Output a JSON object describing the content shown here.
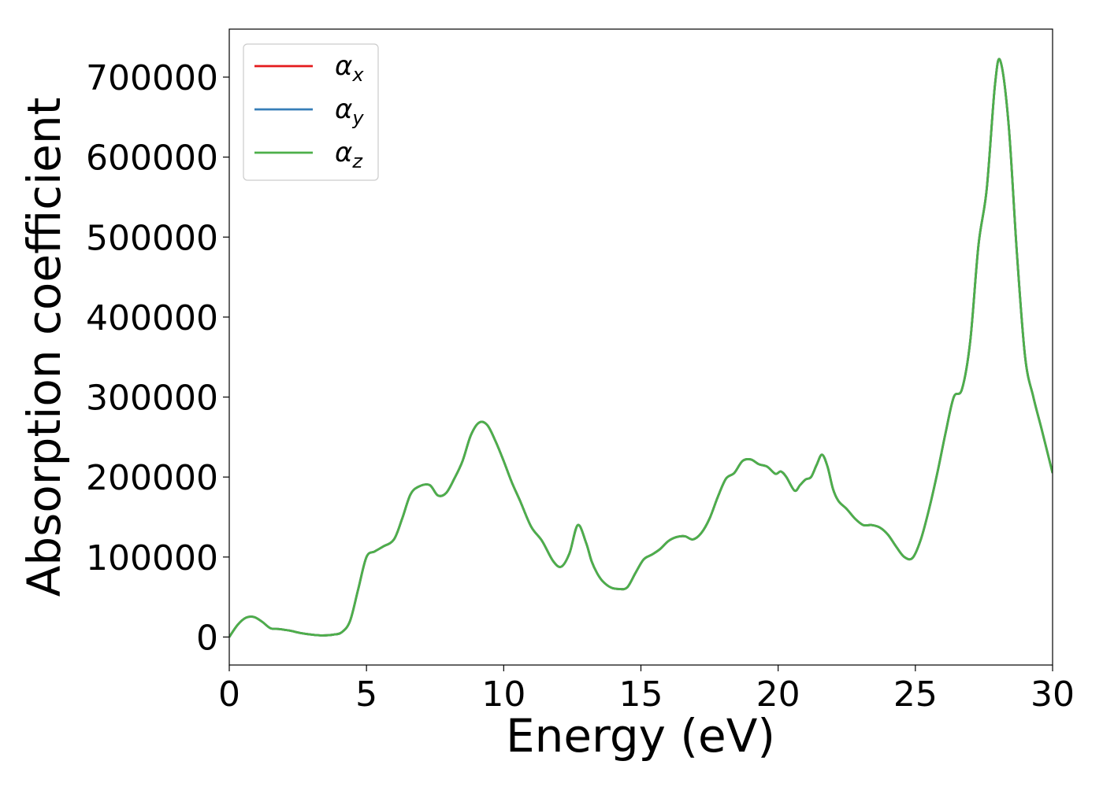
{
  "chart_data": {
    "type": "line",
    "xlabel": "Energy (eV)",
    "ylabel": "Absorption coefficient",
    "xlim": [
      0,
      30
    ],
    "ylim": [
      -35000,
      760000
    ],
    "xticks": [
      0,
      5,
      10,
      15,
      20,
      25,
      30
    ],
    "yticks": [
      0,
      100000,
      200000,
      300000,
      400000,
      500000,
      600000,
      700000
    ],
    "grid": false,
    "legend_position": "top-left",
    "x": [
      0,
      0.3,
      0.6,
      0.9,
      1.2,
      1.5,
      1.8,
      2.2,
      2.6,
      3.0,
      3.4,
      3.8,
      4.1,
      4.4,
      4.7,
      5.0,
      5.3,
      5.6,
      6.0,
      6.3,
      6.6,
      6.9,
      7.3,
      7.6,
      7.9,
      8.2,
      8.5,
      8.8,
      9.1,
      9.4,
      9.7,
      10.0,
      10.3,
      10.6,
      11.0,
      11.4,
      11.8,
      12.1,
      12.4,
      12.7,
      13.0,
      13.2,
      13.4,
      13.6,
      13.9,
      14.2,
      14.5,
      14.8,
      15.1,
      15.4,
      15.7,
      16.0,
      16.3,
      16.6,
      16.9,
      17.2,
      17.5,
      17.8,
      18.1,
      18.4,
      18.7,
      19.0,
      19.3,
      19.6,
      19.9,
      20.1,
      20.3,
      20.6,
      20.8,
      21.0,
      21.2,
      21.4,
      21.6,
      21.8,
      22.0,
      22.2,
      22.5,
      22.8,
      23.1,
      23.4,
      23.7,
      24.0,
      24.3,
      24.6,
      24.9,
      25.2,
      25.5,
      25.8,
      26.1,
      26.4,
      26.7,
      27.0,
      27.3,
      27.6,
      27.9,
      28.1,
      28.4,
      28.7,
      29.0,
      29.3,
      29.6,
      30.0
    ],
    "series": [
      {
        "name": "α_x",
        "color": "#e41a1c",
        "values": [
          0,
          15000,
          24000,
          25000,
          19000,
          11000,
          10000,
          8000,
          5000,
          3000,
          2000,
          3000,
          6000,
          20000,
          60000,
          100000,
          107000,
          113000,
          122000,
          148000,
          178000,
          188000,
          190000,
          177000,
          180000,
          198000,
          220000,
          252000,
          268000,
          265000,
          245000,
          220000,
          193000,
          170000,
          138000,
          120000,
          95000,
          88000,
          105000,
          140000,
          118000,
          95000,
          80000,
          70000,
          62000,
          60000,
          62000,
          80000,
          97000,
          103000,
          110000,
          120000,
          125000,
          126000,
          122000,
          130000,
          148000,
          175000,
          198000,
          205000,
          220000,
          222000,
          216000,
          213000,
          204000,
          207000,
          200000,
          183000,
          190000,
          197000,
          200000,
          215000,
          228000,
          213000,
          185000,
          170000,
          160000,
          148000,
          140000,
          140000,
          137000,
          128000,
          113000,
          100000,
          99000,
          122000,
          160000,
          205000,
          255000,
          300000,
          310000,
          370000,
          490000,
          560000,
          690000,
          720000,
          640000,
          480000,
          350000,
          300000,
          260000,
          205000
        ]
      },
      {
        "name": "α_y",
        "color": "#377eb8",
        "values": [
          0,
          15000,
          24000,
          25000,
          19000,
          11000,
          10000,
          8000,
          5000,
          3000,
          2000,
          3000,
          6000,
          20000,
          60000,
          100000,
          107000,
          113000,
          122000,
          148000,
          178000,
          188000,
          190000,
          177000,
          180000,
          198000,
          220000,
          252000,
          268000,
          265000,
          245000,
          220000,
          193000,
          170000,
          138000,
          120000,
          95000,
          88000,
          105000,
          140000,
          118000,
          95000,
          80000,
          70000,
          62000,
          60000,
          62000,
          80000,
          97000,
          103000,
          110000,
          120000,
          125000,
          126000,
          122000,
          130000,
          148000,
          175000,
          198000,
          205000,
          220000,
          222000,
          216000,
          213000,
          204000,
          207000,
          200000,
          183000,
          190000,
          197000,
          200000,
          215000,
          228000,
          213000,
          185000,
          170000,
          160000,
          148000,
          140000,
          140000,
          137000,
          128000,
          113000,
          100000,
          99000,
          122000,
          160000,
          205000,
          255000,
          300000,
          310000,
          370000,
          490000,
          560000,
          690000,
          720000,
          640000,
          480000,
          350000,
          300000,
          260000,
          205000
        ]
      },
      {
        "name": "α_z",
        "color": "#4daf4a",
        "values": [
          0,
          15000,
          24000,
          25000,
          19000,
          11000,
          10000,
          8000,
          5000,
          3000,
          2000,
          3000,
          6000,
          20000,
          60000,
          100000,
          107000,
          113000,
          122000,
          148000,
          178000,
          188000,
          190000,
          177000,
          180000,
          198000,
          220000,
          252000,
          268000,
          265000,
          245000,
          220000,
          193000,
          170000,
          138000,
          120000,
          95000,
          88000,
          105000,
          140000,
          118000,
          95000,
          80000,
          70000,
          62000,
          60000,
          62000,
          80000,
          97000,
          103000,
          110000,
          120000,
          125000,
          126000,
          122000,
          130000,
          148000,
          175000,
          198000,
          205000,
          220000,
          222000,
          216000,
          213000,
          204000,
          207000,
          200000,
          183000,
          190000,
          197000,
          200000,
          215000,
          228000,
          213000,
          185000,
          170000,
          160000,
          148000,
          140000,
          140000,
          137000,
          128000,
          113000,
          100000,
          99000,
          122000,
          160000,
          205000,
          255000,
          300000,
          310000,
          370000,
          490000,
          560000,
          690000,
          720000,
          640000,
          480000,
          350000,
          300000,
          260000,
          205000
        ]
      }
    ],
    "legend": [
      {
        "symbol": "α",
        "subscript": "x"
      },
      {
        "symbol": "α",
        "subscript": "y"
      },
      {
        "symbol": "α",
        "subscript": "z"
      }
    ]
  }
}
